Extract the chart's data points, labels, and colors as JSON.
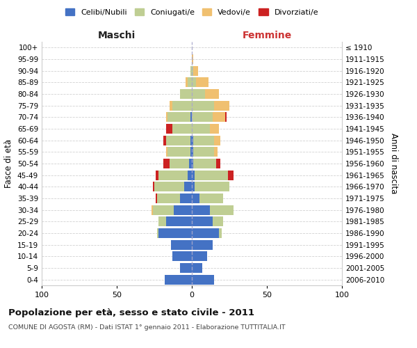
{
  "age_groups": [
    "0-4",
    "5-9",
    "10-14",
    "15-19",
    "20-24",
    "25-29",
    "30-34",
    "35-39",
    "40-44",
    "45-49",
    "50-54",
    "55-59",
    "60-64",
    "65-69",
    "70-74",
    "75-79",
    "80-84",
    "85-89",
    "90-94",
    "95-99",
    "100+"
  ],
  "birth_years": [
    "2006-2010",
    "2001-2005",
    "1996-2000",
    "1991-1995",
    "1986-1990",
    "1981-1985",
    "1976-1980",
    "1971-1975",
    "1966-1970",
    "1961-1965",
    "1956-1960",
    "1951-1955",
    "1946-1950",
    "1941-1945",
    "1936-1940",
    "1931-1935",
    "1926-1930",
    "1921-1925",
    "1916-1920",
    "1911-1915",
    "≤ 1910"
  ],
  "male": {
    "celibi": [
      18,
      8,
      13,
      14,
      22,
      17,
      12,
      8,
      5,
      3,
      2,
      1,
      1,
      0,
      1,
      0,
      0,
      0,
      0,
      0,
      0
    ],
    "coniugati": [
      0,
      0,
      0,
      0,
      1,
      5,
      14,
      15,
      20,
      19,
      13,
      15,
      16,
      13,
      15,
      13,
      8,
      3,
      1,
      0,
      0
    ],
    "vedovi": [
      0,
      0,
      0,
      0,
      0,
      0,
      1,
      0,
      0,
      0,
      0,
      1,
      0,
      0,
      1,
      2,
      0,
      1,
      0,
      0,
      0
    ],
    "divorziati": [
      0,
      0,
      0,
      0,
      0,
      0,
      0,
      1,
      1,
      2,
      4,
      0,
      2,
      4,
      0,
      0,
      0,
      0,
      0,
      0,
      0
    ]
  },
  "female": {
    "nubili": [
      15,
      7,
      10,
      14,
      18,
      14,
      12,
      5,
      2,
      2,
      1,
      1,
      1,
      0,
      0,
      0,
      0,
      0,
      0,
      0,
      0
    ],
    "coniugate": [
      0,
      0,
      0,
      0,
      2,
      7,
      16,
      16,
      23,
      22,
      15,
      14,
      14,
      12,
      14,
      15,
      9,
      3,
      1,
      0,
      0
    ],
    "vedove": [
      0,
      0,
      0,
      0,
      0,
      0,
      0,
      0,
      0,
      0,
      0,
      2,
      4,
      6,
      8,
      10,
      9,
      8,
      3,
      1,
      0
    ],
    "divorziate": [
      0,
      0,
      0,
      0,
      0,
      0,
      0,
      0,
      0,
      4,
      3,
      0,
      0,
      0,
      1,
      0,
      0,
      0,
      0,
      0,
      0
    ]
  },
  "colors": {
    "celibi_nubili": "#4472C4",
    "coniugati": "#BFCE93",
    "vedovi": "#F0C070",
    "divorziati": "#CC2222"
  },
  "xlim": 100,
  "title": "Popolazione per età, sesso e stato civile - 2011",
  "subtitle": "COMUNE DI AGOSTA (RM) - Dati ISTAT 1° gennaio 2011 - Elaborazione TUTTITALIA.IT",
  "xlabel_left": "Maschi",
  "xlabel_right": "Femmine",
  "ylabel_left": "Fasce di età",
  "ylabel_right": "Anni di nascita",
  "legend_labels": [
    "Celibi/Nubili",
    "Coniugati/e",
    "Vedovi/e",
    "Divorziati/e"
  ],
  "background_color": "#ffffff",
  "grid_color": "#cccccc"
}
